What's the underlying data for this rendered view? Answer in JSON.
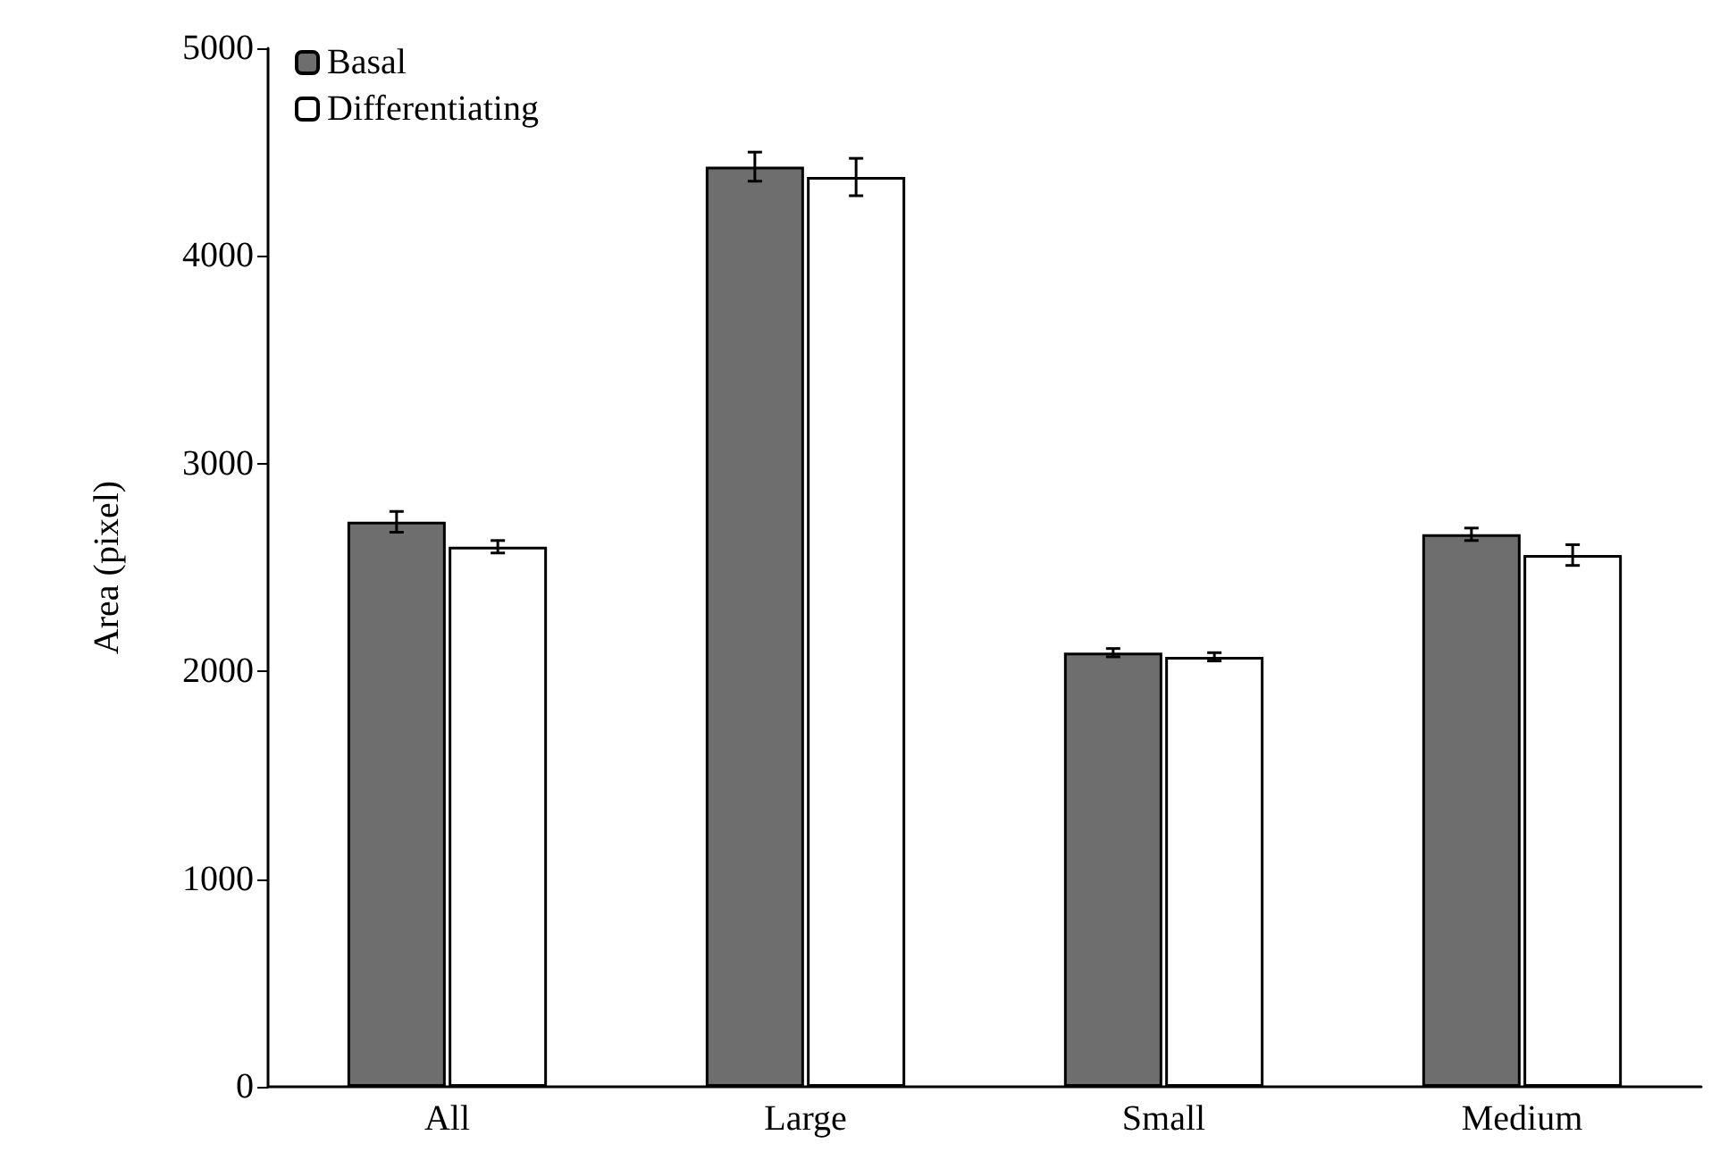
{
  "chart_data": {
    "type": "bar",
    "ylabel": "Area (pixel)",
    "categories": [
      "All",
      "Large",
      "Small",
      "Medium"
    ],
    "series": [
      {
        "name": "Basal",
        "color": "#6e6e6e",
        "values": [
          2720,
          4430,
          2090,
          2660
        ],
        "errors": [
          50,
          70,
          20,
          30
        ]
      },
      {
        "name": "Differentiating",
        "color": "#ffffff",
        "values": [
          2600,
          4380,
          2070,
          2560
        ],
        "errors": [
          30,
          90,
          20,
          50
        ]
      }
    ],
    "ylim": [
      0,
      5000
    ],
    "yticks": [
      0,
      1000,
      2000,
      3000,
      4000,
      5000
    ],
    "grid": false,
    "legend": "top left"
  }
}
